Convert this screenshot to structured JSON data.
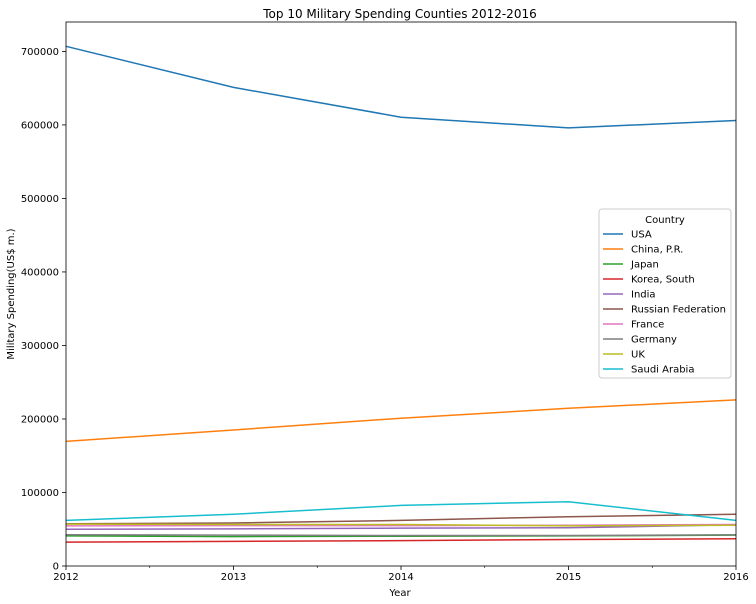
{
  "chart_data": {
    "type": "line",
    "title": "Top 10 Military Spending Counties 2012-2016",
    "xlabel": "Year",
    "ylabel": "Military Spending(US$ m.)",
    "x": [
      2012,
      2013,
      2014,
      2015,
      2016
    ],
    "xlim": [
      2012,
      2016
    ],
    "ylim": [
      0,
      740000
    ],
    "yticks": [
      0,
      100000,
      200000,
      300000,
      400000,
      500000,
      600000,
      700000
    ],
    "grid": false,
    "legend": {
      "title": "Country",
      "placement": "right"
    },
    "series": [
      {
        "name": "USA",
        "color": "#1f77b4",
        "values": [
          707000,
          651000,
          610500,
          596000,
          606000
        ]
      },
      {
        "name": "China, P.R.",
        "color": "#ff7f0e",
        "values": [
          169500,
          185000,
          201000,
          214500,
          226000
        ]
      },
      {
        "name": "Japan",
        "color": "#2ca02c",
        "values": [
          41000,
          40000,
          40500,
          41000,
          42000
        ]
      },
      {
        "name": "Korea, South",
        "color": "#d62728",
        "values": [
          32500,
          33500,
          34500,
          36000,
          37000
        ]
      },
      {
        "name": "India",
        "color": "#9467bd",
        "values": [
          50000,
          50500,
          51500,
          52000,
          56000
        ]
      },
      {
        "name": "Russian Federation",
        "color": "#8c564b",
        "values": [
          57500,
          58500,
          62000,
          67000,
          70500
        ]
      },
      {
        "name": "France",
        "color": "#e377c2",
        "values": [
          54500,
          55000,
          55000,
          55500,
          56500
        ]
      },
      {
        "name": "Germany",
        "color": "#7f7f7f",
        "values": [
          42500,
          42000,
          41500,
          41500,
          42500
        ]
      },
      {
        "name": "UK",
        "color": "#bcbd22",
        "values": [
          57000,
          56500,
          56500,
          54500,
          55500
        ]
      },
      {
        "name": "Saudi Arabia",
        "color": "#17becf",
        "values": [
          62000,
          70500,
          82500,
          87500,
          62000
        ]
      }
    ]
  }
}
